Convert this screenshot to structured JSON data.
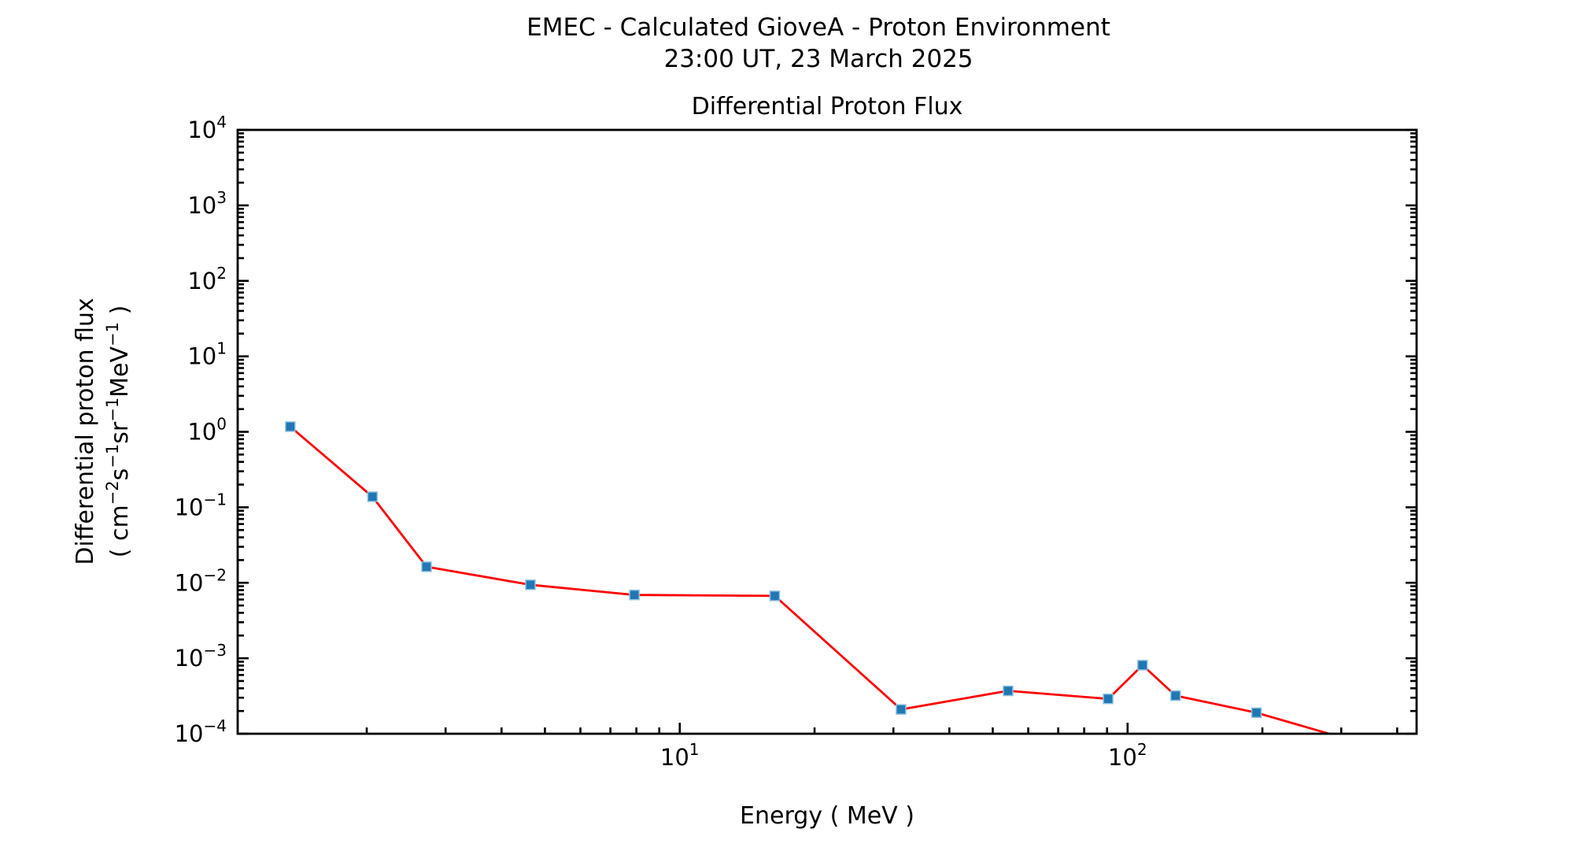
{
  "figure": {
    "suptitle_line1": "EMEC - Calculated GioveA - Proton Environment",
    "suptitle_line2": "23:00 UT, 23 March 2025",
    "background_color": "#ffffff",
    "text_color": "#000000"
  },
  "chart_data": {
    "type": "line",
    "title": "Differential Proton Flux",
    "xlabel": "Energy ( MeV )",
    "ylabel_line1": "Differential proton flux",
    "ylabel_line2": "( cm⁻²s⁻¹sr⁻¹MeV⁻¹ )",
    "ylabel_line2_parts": [
      {
        "text": "( cm",
        "sup": false
      },
      {
        "text": "−2",
        "sup": true
      },
      {
        "text": "s",
        "sup": false
      },
      {
        "text": "−1",
        "sup": true
      },
      {
        "text": "sr",
        "sup": false
      },
      {
        "text": "−1",
        "sup": true
      },
      {
        "text": "MeV",
        "sup": false
      },
      {
        "text": "−1",
        "sup": true
      },
      {
        "text": " )",
        "sup": false
      }
    ],
    "x_scale": "log",
    "y_scale": "log",
    "xlim": [
      1.03,
      442
    ],
    "ylim": [
      0.0001,
      10000
    ],
    "x_tick_exponents": [
      1,
      2
    ],
    "y_tick_exponents": [
      -4,
      -3,
      -2,
      -1,
      0,
      1,
      2,
      3,
      4
    ],
    "x_tick_labels": [
      "10¹",
      "10²"
    ],
    "y_tick_labels": [
      "10⁻⁴",
      "10⁻³",
      "10⁻²",
      "10⁻¹",
      "10⁰",
      "10¹",
      "10²",
      "10³",
      "10⁴"
    ],
    "grid": false,
    "legend": null,
    "series": [
      {
        "name": "differential-proton-flux",
        "x": [
          1.35,
          2.06,
          2.72,
          4.64,
          7.92,
          16.3,
          31.2,
          54.1,
          90.5,
          108,
          128,
          194,
          310
        ],
        "y": [
          1.17,
          0.138,
          0.0163,
          0.0094,
          0.0069,
          0.0067,
          0.00021,
          0.00037,
          0.00029,
          0.00081,
          0.00032,
          0.00019,
          8.5e-05
        ],
        "line_color": "#ff0000",
        "line_width": 2.8,
        "marker": "square",
        "marker_color": "#1f77b4",
        "marker_edge_color": "#8fc0e0",
        "marker_size": 12
      }
    ]
  }
}
